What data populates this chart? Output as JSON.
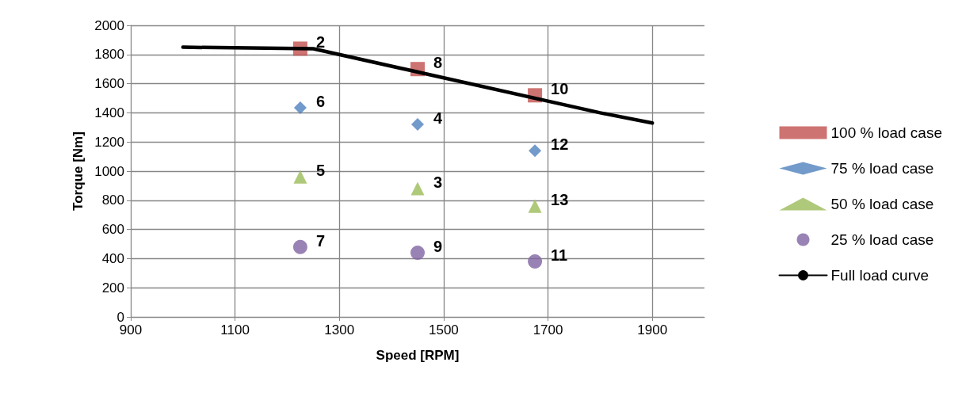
{
  "chart_data": {
    "type": "scatter",
    "xlabel": "Speed [RPM]",
    "ylabel": "Torque [Nm]",
    "x": [
      1225,
      1450,
      1675
    ],
    "series": [
      {
        "name": "100 % load case",
        "color": "#c0504d",
        "marker": "square",
        "values": [
          1840,
          1700,
          1520
        ]
      },
      {
        "name": "75 % load case",
        "color": "#4f81bd",
        "marker": "diamond",
        "values": [
          1435,
          1320,
          1140
        ]
      },
      {
        "name": "50 % load case",
        "color": "#9bbb59",
        "marker": "triangle",
        "values": [
          960,
          880,
          760
        ]
      },
      {
        "name": "25 % load case",
        "color": "#8064a2",
        "marker": "circle",
        "values": [
          480,
          440,
          380
        ]
      },
      {
        "name": "Full load curve",
        "type": "line",
        "color": "#000000",
        "marker": "none",
        "line_style": "solid",
        "x": [
          1000,
          1250,
          1800,
          1900
        ],
        "values": [
          1850,
          1840,
          1400,
          1330
        ]
      }
    ],
    "xlim": [
      900,
      2000
    ],
    "xticks": [
      900,
      1100,
      1300,
      1500,
      1700,
      1900
    ],
    "ylim": [
      0,
      2000
    ],
    "yticks": [
      0,
      200,
      400,
      600,
      800,
      1000,
      1200,
      1400,
      1600,
      1800,
      2000
    ],
    "grid": true,
    "legend": "right",
    "annotations": [
      {
        "text": "2",
        "x": 1225,
        "y": 1840
      },
      {
        "text": "8",
        "x": 1450,
        "y": 1700
      },
      {
        "text": "10",
        "x": 1675,
        "y": 1520
      },
      {
        "text": "6",
        "x": 1225,
        "y": 1435
      },
      {
        "text": "4",
        "x": 1450,
        "y": 1320
      },
      {
        "text": "12",
        "x": 1675,
        "y": 1140
      },
      {
        "text": "5",
        "x": 1225,
        "y": 960
      },
      {
        "text": "3",
        "x": 1450,
        "y": 880
      },
      {
        "text": "13",
        "x": 1675,
        "y": 760
      },
      {
        "text": "7",
        "x": 1225,
        "y": 480
      },
      {
        "text": "9",
        "x": 1450,
        "y": 440
      },
      {
        "text": "11",
        "x": 1675,
        "y": 380
      }
    ]
  }
}
